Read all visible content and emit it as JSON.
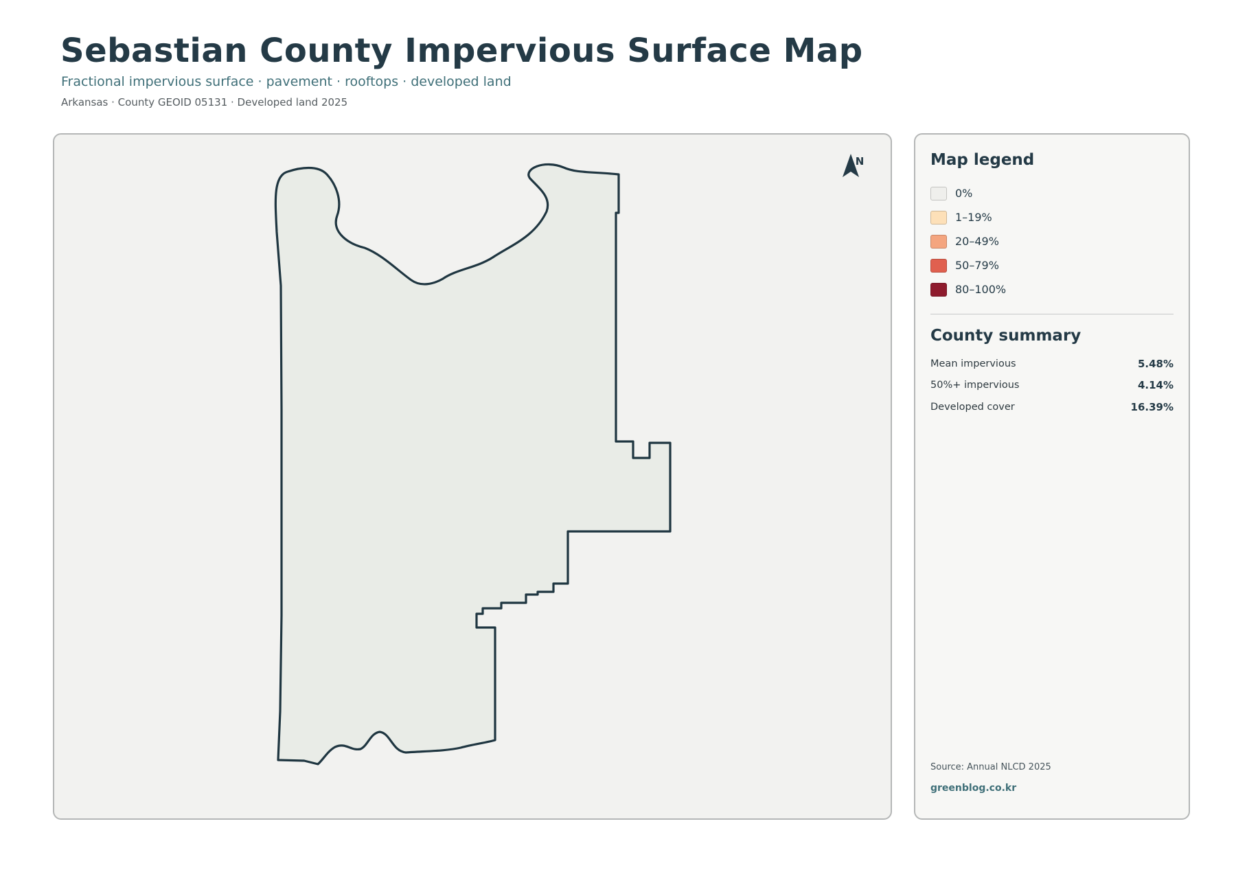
{
  "header": {
    "title": "Sebastian County Impervious Surface Map",
    "subtitle": "Fractional impervious surface · pavement · rooftops · developed land",
    "meta": "Arkansas · County GEOID 05131 · Developed land 2025"
  },
  "map": {
    "north_label": "N",
    "boundary_color": "#1f3641",
    "land_color": "#e9ece7"
  },
  "legend": {
    "title": "Map legend",
    "items": [
      {
        "label": "0%",
        "color": "#efefec"
      },
      {
        "label": "1–19%",
        "color": "#fde0b8"
      },
      {
        "label": "20–49%",
        "color": "#f4a57f"
      },
      {
        "label": "50–79%",
        "color": "#e0604f"
      },
      {
        "label": "80–100%",
        "color": "#8e1b2d"
      }
    ]
  },
  "summary": {
    "title": "County summary",
    "stats": [
      {
        "label": "Mean impervious",
        "value": "5.48%"
      },
      {
        "label": "50%+ impervious",
        "value": "4.14%"
      },
      {
        "label": "Developed cover",
        "value": "16.39%"
      }
    ]
  },
  "footer": {
    "source": "Source: Annual NLCD 2025",
    "site": "greenblog.co.kr"
  }
}
